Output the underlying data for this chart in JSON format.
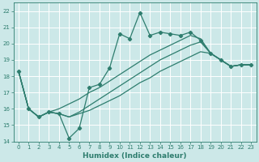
{
  "xlabel": "Humidex (Indice chaleur)",
  "bg_color": "#cce8e8",
  "grid_color": "#ffffff",
  "line_color": "#2e7d6e",
  "xlim": [
    -0.5,
    23.5
  ],
  "ylim": [
    14,
    22.5
  ],
  "yticks": [
    14,
    15,
    16,
    17,
    18,
    19,
    20,
    21,
    22
  ],
  "xticks": [
    0,
    1,
    2,
    3,
    4,
    5,
    6,
    7,
    8,
    9,
    10,
    11,
    12,
    13,
    14,
    15,
    16,
    17,
    18,
    19,
    20,
    21,
    22,
    23
  ],
  "line1_x": [
    0,
    1,
    2,
    3,
    4,
    5,
    6,
    7,
    8,
    9,
    10,
    11,
    12,
    13,
    14,
    15,
    16,
    17,
    18,
    19,
    20,
    21,
    22,
    23
  ],
  "line1_y": [
    18.3,
    16.0,
    15.5,
    15.8,
    15.7,
    14.2,
    14.8,
    17.3,
    17.5,
    18.5,
    20.6,
    20.3,
    21.9,
    20.5,
    20.7,
    20.6,
    20.5,
    20.7,
    20.2,
    19.4,
    19.0,
    18.6,
    18.7,
    18.7
  ],
  "line2_x": [
    0,
    1,
    2,
    3,
    4,
    5,
    6,
    7,
    8,
    9,
    10,
    11,
    12,
    13,
    14,
    15,
    16,
    17,
    18,
    19,
    20,
    21,
    22,
    23
  ],
  "line2_y": [
    18.3,
    16.0,
    15.5,
    15.8,
    16.0,
    16.3,
    16.6,
    17.0,
    17.3,
    17.7,
    18.1,
    18.5,
    18.9,
    19.3,
    19.6,
    19.9,
    20.2,
    20.5,
    20.3,
    19.4,
    19.0,
    18.6,
    18.7,
    18.7
  ],
  "line3_x": [
    0,
    1,
    2,
    3,
    4,
    5,
    6,
    7,
    8,
    9,
    10,
    11,
    12,
    13,
    14,
    15,
    16,
    17,
    18,
    19,
    20,
    21,
    22,
    23
  ],
  "line3_y": [
    18.3,
    16.0,
    15.5,
    15.8,
    15.7,
    15.5,
    15.8,
    16.2,
    16.6,
    17.0,
    17.4,
    17.8,
    18.2,
    18.6,
    19.0,
    19.3,
    19.6,
    19.9,
    20.1,
    19.4,
    19.0,
    18.6,
    18.7,
    18.7
  ],
  "line4_x": [
    0,
    1,
    2,
    3,
    4,
    5,
    6,
    7,
    8,
    9,
    10,
    11,
    12,
    13,
    14,
    15,
    16,
    17,
    18,
    19,
    20,
    21,
    22,
    23
  ],
  "line4_y": [
    18.3,
    16.0,
    15.5,
    15.8,
    15.7,
    15.5,
    15.7,
    15.9,
    16.2,
    16.5,
    16.8,
    17.2,
    17.6,
    17.9,
    18.3,
    18.6,
    18.9,
    19.2,
    19.5,
    19.4,
    19.0,
    18.6,
    18.7,
    18.7
  ]
}
